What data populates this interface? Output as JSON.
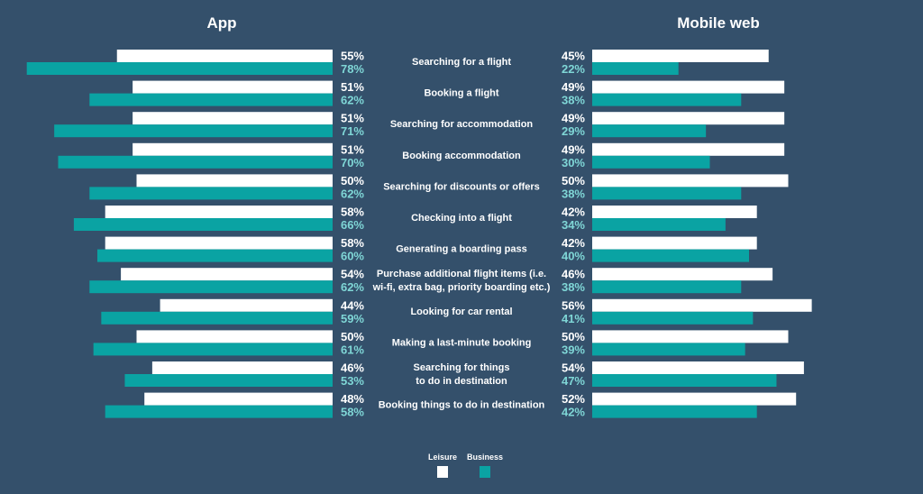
{
  "colors": {
    "background": "#34506b",
    "leisure": "#ffffff",
    "business": "#0aa3a3",
    "business_text": "#7fd6d6"
  },
  "chart_data": [
    {
      "type": "bar",
      "orientation": "horizontal",
      "title": "App",
      "categories": [
        "Searching for a flight",
        "Booking a flight",
        "Searching for accommodation",
        "Booking accommodation",
        "Searching for discounts or offers",
        "Checking into a flight",
        "Generating a boarding pass",
        "Purchase additional flight items (i.e. wi-fi, extra bag, priority boarding etc.)",
        "Looking for car rental",
        "Making a last-minute booking",
        "Searching for things to do in destination",
        "Booking things to do in destination"
      ],
      "series": [
        {
          "name": "Leisure",
          "values": [
            55,
            51,
            51,
            51,
            50,
            58,
            58,
            54,
            44,
            50,
            46,
            48
          ]
        },
        {
          "name": "Business",
          "values": [
            78,
            62,
            71,
            70,
            62,
            66,
            60,
            62,
            59,
            61,
            53,
            58
          ]
        }
      ],
      "value_suffix": "%",
      "legend": [
        "Leisure",
        "Business"
      ],
      "legend_position": "bottom-center"
    },
    {
      "type": "bar",
      "orientation": "horizontal",
      "title": "Mobile web",
      "categories": [
        "Searching for a flight",
        "Booking a flight",
        "Searching for accommodation",
        "Booking accommodation",
        "Searching for discounts or offers",
        "Checking into a flight",
        "Generating a boarding pass",
        "Purchase additional flight items (i.e. wi-fi, extra bag, priority boarding etc.)",
        "Looking for car rental",
        "Making a last-minute booking",
        "Searching for things to do in destination",
        "Booking things to do in destination"
      ],
      "series": [
        {
          "name": "Leisure",
          "values": [
            45,
            49,
            49,
            49,
            50,
            42,
            42,
            46,
            56,
            50,
            54,
            52
          ]
        },
        {
          "name": "Business",
          "values": [
            22,
            38,
            29,
            30,
            38,
            34,
            40,
            38,
            41,
            39,
            47,
            42
          ]
        }
      ],
      "value_suffix": "%",
      "legend": [
        "Leisure",
        "Business"
      ],
      "legend_position": "bottom-center"
    }
  ]
}
